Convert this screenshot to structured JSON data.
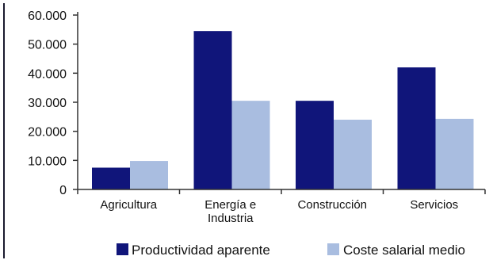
{
  "chart_data": {
    "type": "bar",
    "categories": [
      [
        "Agricultura"
      ],
      [
        "Energía e",
        "Industria"
      ],
      [
        "Construcción"
      ],
      [
        "Servicios"
      ]
    ],
    "series": [
      {
        "name": "Productividad aparente",
        "values": [
          7500,
          54500,
          30500,
          42000
        ],
        "color": "#10157a"
      },
      {
        "name": "Coste salarial medio",
        "values": [
          9800,
          30500,
          24000,
          24300
        ],
        "color": "#a9bde0"
      }
    ],
    "yticks": [
      "0",
      "10.000",
      "20.000",
      "30.000",
      "40.000",
      "50.000",
      "60.000"
    ],
    "ylim": [
      0,
      60000
    ],
    "ytick_step": 10000,
    "legend_position": "bottom",
    "grid": false,
    "colors": {
      "axis": "#333333",
      "frame": "#1a1a2e"
    }
  }
}
